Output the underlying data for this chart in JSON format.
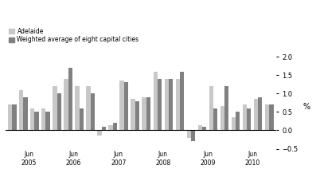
{
  "ylabel": "%",
  "ylim": [
    -0.5,
    2.0
  ],
  "yticks": [
    -0.5,
    0.0,
    0.5,
    1.0,
    1.5,
    2.0
  ],
  "color_adelaide": "#c8c8c8",
  "color_weighted": "#808080",
  "legend_adelaide": "Adelaide",
  "legend_weighted": "Weighted average of eight capital cities",
  "adelaide": [
    0.7,
    1.1,
    0.6,
    0.6,
    1.2,
    1.4,
    1.2,
    1.2,
    -0.15,
    0.15,
    1.35,
    0.85,
    0.9,
    1.6,
    1.4,
    1.4,
    -0.2,
    0.15,
    1.2,
    0.65,
    0.35,
    0.7,
    0.85,
    0.7
  ],
  "weighted": [
    0.7,
    0.9,
    0.5,
    0.5,
    1.0,
    1.7,
    0.6,
    1.0,
    0.1,
    0.2,
    1.3,
    0.8,
    0.9,
    1.4,
    1.4,
    1.6,
    -0.3,
    0.1,
    0.6,
    1.2,
    0.5,
    0.6,
    0.9,
    0.7
  ],
  "n_bars": 24,
  "xtick_positions": [
    1.5,
    5.5,
    9.5,
    13.5,
    17.5,
    21.5
  ],
  "xtick_labels": [
    "Jun\n2005",
    "Jun\n2006",
    "Jun\n2007",
    "Jun\n2008",
    "Jun\n2009",
    "Jun\n2010"
  ]
}
